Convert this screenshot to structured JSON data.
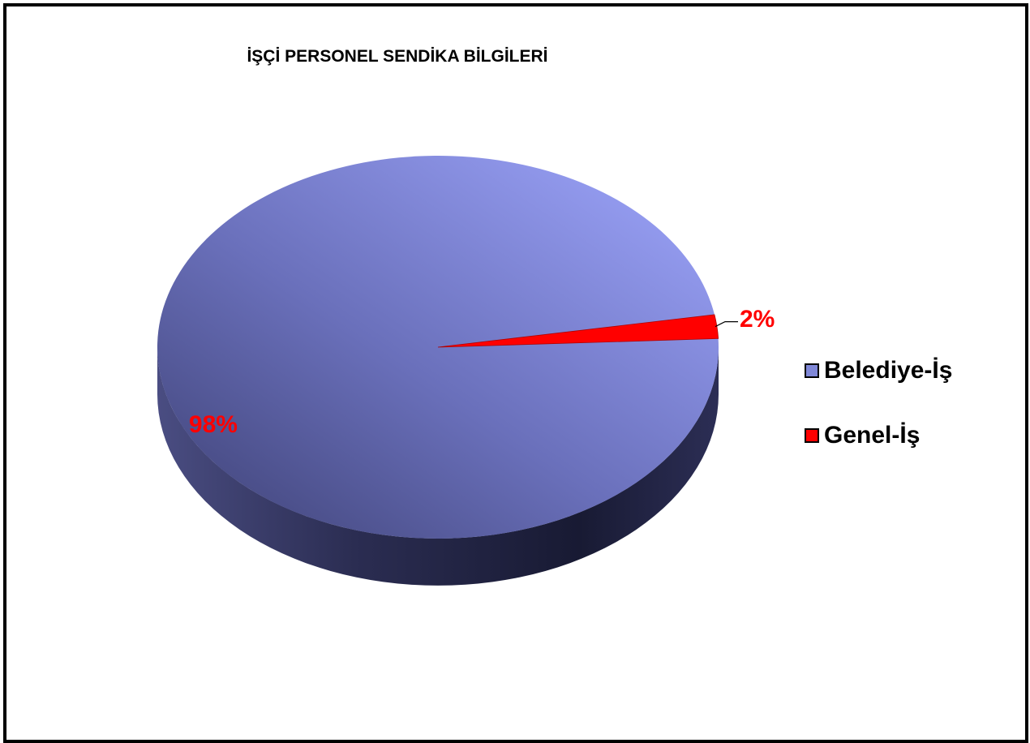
{
  "chart_data": {
    "type": "pie",
    "title": "İŞÇİ PERSONEL SENDİKA BİLGİLERİ",
    "slices": [
      {
        "label": "Belediye-İş",
        "value": 98,
        "display": "98%",
        "color": "#8088d8"
      },
      {
        "label": "Genel-İş",
        "value": 2,
        "display": "2%",
        "color": "#ff0000"
      }
    ],
    "legend": "right",
    "style": "3d"
  }
}
